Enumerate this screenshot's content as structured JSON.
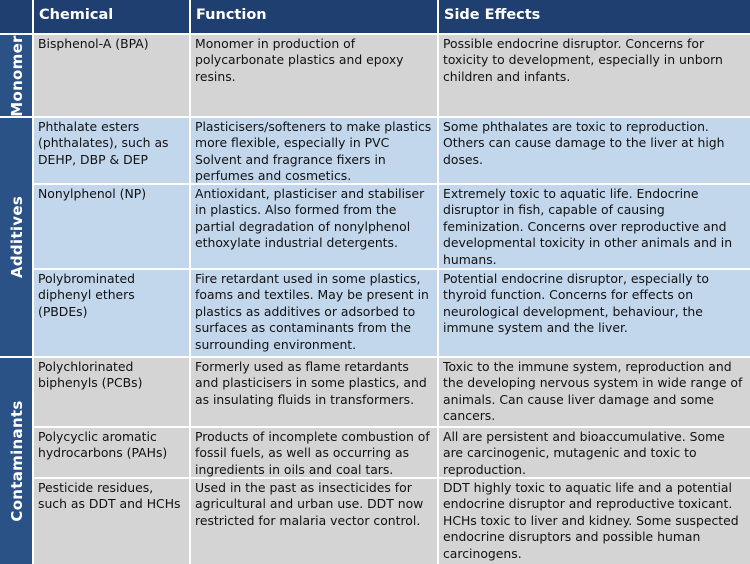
{
  "headers": [
    "Chemical",
    "Function",
    "Side Effects"
  ],
  "groups": [
    "Monomer",
    "Additives",
    "Contaminants"
  ],
  "rows": [
    {
      "chemical": "Bisphenol-A (BPA)",
      "function": "Monomer in production of polycarbonate plastics and epoxy resins.",
      "effects": "Possible endocrine disruptor. Concerns for toxicity to development, especially in unborn children and infants."
    },
    {
      "chemical": "Phthalate esters (phthalates), such as DEHP, DBP & DEP",
      "function": "Plasticisers/softeners to make plastics more flexible, especially in PVC Solvent and fragrance fixers in perfumes and cosmetics.",
      "effects": "Some phthalates are toxic to reproduction. Others can cause damage to the liver at high doses."
    },
    {
      "chemical": "Nonylphenol (NP)",
      "function": "Antioxidant, plasticiser and stabiliser in plastics. Also formed from the partial degradation of nonylphenol ethoxylate industrial detergents.",
      "effects": "Extremely toxic to aquatic life. Endocrine disruptor in fish, capable of causing feminization. Concerns over reproductive and developmental toxicity in other animals and in humans."
    },
    {
      "chemical": "Polybrominated diphenyl ethers (PBDEs)",
      "function": "Fire retardant used in some plastics, foams and textiles. May be present in plastics as additives or adsorbed to surfaces as contaminants from the surrounding environment.",
      "effects": "Potential endocrine disruptor, especially to thyroid function. Concerns for effects on neurological development, behaviour, the immune system and the liver."
    },
    {
      "chemical": "Polychlorinated biphenyls (PCBs)",
      "function": "Formerly used as flame retardants and plasticisers in some plastics, and as insulating fluids in transformers.",
      "effects": "Toxic to the immune system, reproduction and the developing nervous system in wide range of animals. Can cause liver damage and some cancers."
    },
    {
      "chemical": "Polycyclic aromatic hydrocarbons (PAHs)",
      "function": "Products of incomplete combustion of fossil fuels, as well as occurring as ingredients in oils and coal tars.",
      "effects": "All are persistent and bioaccumulative. Some are carcinogenic, mutagenic and toxic to reproduction."
    },
    {
      "chemical": "Pesticide residues, such as DDT and HCHs",
      "function": "Used in the past as insecticides for agricultural and urban use. DDT now restricted for malaria vector control.",
      "effects": "DDT highly toxic to aquatic life and a potential endocrine disruptor and reproductive toxicant. HCHs toxic to liver and kidney. Some suspected endocrine disruptors and possible human carcinogens."
    }
  ],
  "colors": {
    "header": "#1f3f70",
    "side": "#2a5287",
    "grey": "#d4d4d4",
    "blue": "#c2d6ec"
  }
}
